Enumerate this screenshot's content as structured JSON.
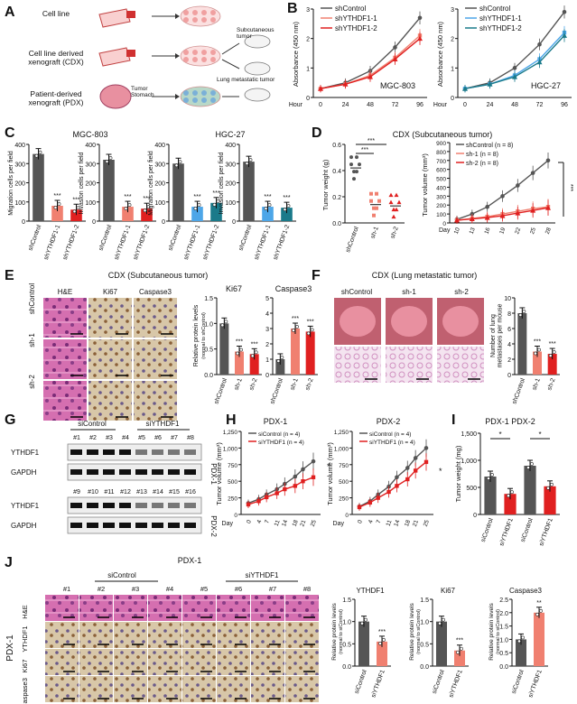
{
  "panels": {
    "A": {
      "letter": "A",
      "rows": [
        "Cell line",
        "Cell line derived\nxenograft (CDX)",
        "Patient-derived\nxenograft (PDX)"
      ],
      "tumor_stomach": "Tumor\nStomach",
      "subcutaneous": "Subcutaneous\ntumor",
      "lung_meta": "Lung metastatic tumor"
    },
    "B": {
      "letter": "B",
      "legend_left": [
        "shControl",
        "shYTHDF1-1",
        "shYTHDF1-2"
      ],
      "legend_right": [
        "shControl",
        "shYTHDF1-1",
        "shYTHDF1-2"
      ],
      "ylabel": "Absorbance (450 nm)",
      "xlabel": "Hour",
      "xticks": [
        "0",
        "24",
        "48",
        "72",
        "96"
      ],
      "yticks": [
        "0",
        "1",
        "2",
        "3"
      ],
      "cell_left": "MGC-803",
      "cell_right": "HGC-27"
    },
    "C": {
      "letter": "C",
      "title_left": "MGC-803",
      "title_right": "HGC-27",
      "ylabel_mig": "Migration cells per field",
      "ylabel_inv": "Invasion cells per field",
      "groups": [
        "shControl",
        "shYTHDF1-1",
        "shYTHDF1-2"
      ],
      "yticks": [
        "0",
        "100",
        "200",
        "300",
        "400"
      ]
    },
    "D": {
      "letter": "D",
      "title": "CDX (Subcutaneous tumor)",
      "ylabel_weight": "Tumor weight (g)",
      "groups": [
        "shControl",
        "sh-1",
        "sh-2"
      ],
      "wticks": [
        "0.0",
        "0.2",
        "0.4",
        "0.6"
      ],
      "ylabel_volume": "Tumor volume (mm³)",
      "vticks": [
        "0",
        "100",
        "200",
        "300",
        "400",
        "500",
        "600",
        "700",
        "800",
        "900"
      ],
      "days": [
        "Day",
        "10",
        "13",
        "16",
        "19",
        "22",
        "25",
        "28"
      ],
      "legend": [
        "shControl (n = 8)",
        "sh-1 (n = 8)",
        "sh-2 (n = 8)"
      ],
      "sig": [
        "***",
        "***",
        "***"
      ]
    },
    "E": {
      "letter": "E",
      "title": "CDX (Subcutaneous tumor)",
      "cols": [
        "H&E",
        "Ki67",
        "Caspase3"
      ],
      "rows": [
        "shControl",
        "sh-1",
        "sh-2"
      ],
      "chart_ki67": "Ki67",
      "chart_casp": "Caspase3",
      "ylabel": "Relative protein levels",
      "ysub": "(normal to shControl)",
      "groups": [
        "shControl",
        "sh-1",
        "sh-2"
      ]
    },
    "F": {
      "letter": "F",
      "title": "CDX (Lung metastatic tumor)",
      "cols": [
        "shControl",
        "sh-1",
        "sh-2"
      ],
      "ylabel": "Number of lung\nmetastases per mouse",
      "groups": [
        "shControl",
        "sh-1",
        "sh-2"
      ],
      "yticks": [
        "0",
        "2",
        "4",
        "6",
        "8",
        "10"
      ]
    },
    "G": {
      "letter": "G",
      "group_labels": [
        "siControl",
        "siYTHDF1"
      ],
      "lanes_top": [
        "#1",
        "#2",
        "#3",
        "#4",
        "#5",
        "#6",
        "#7",
        "#8"
      ],
      "lanes_bottom": [
        "#9",
        "#10",
        "#11",
        "#12",
        "#13",
        "#14",
        "#15",
        "#16"
      ],
      "rows": [
        "YTHDF1",
        "GAPDH",
        "YTHDF1",
        "GAPDH"
      ],
      "pdx": [
        "PDX-1",
        "PDX-2"
      ]
    },
    "H": {
      "letter": "H",
      "title_left": "PDX-1",
      "title_right": "PDX-2",
      "ylabel": "Tumor volume (mm³)",
      "yticks": [
        "0",
        "250",
        "500",
        "750",
        "1,000",
        "1,250"
      ],
      "days": [
        "Day",
        "0",
        "4",
        "7",
        "11",
        "14",
        "18",
        "21",
        "25"
      ],
      "legend": [
        "siControl (n = 4)",
        "siYTHDF1 (n = 4)"
      ]
    },
    "I": {
      "letter": "I",
      "title": "PDX-1 PDX-2",
      "ylabel": "Tumor weight (mg)",
      "yticks": [
        "0",
        "500",
        "1,000",
        "1,500"
      ],
      "groups": [
        "siControl",
        "siYTHDF1",
        "siControl",
        "siYTHDF1"
      ]
    },
    "J": {
      "letter": "J",
      "top": "PDX-1",
      "group_labels": [
        "siControl",
        "siYTHDF1"
      ],
      "lanes": [
        "#1",
        "#2",
        "#3",
        "#4",
        "#5",
        "#6",
        "#7",
        "#8"
      ],
      "rows": [
        "H&E",
        "YTHDF1",
        "Ki67",
        "Caspase3"
      ],
      "side": "PDX-1",
      "chart_titles": [
        "YTHDF1",
        "Ki67",
        "Caspase3"
      ],
      "ylabel": "Relative protein levels",
      "ysub": "(normal to siControl)",
      "groups": [
        "siControl",
        "siYTHDF1"
      ]
    }
  },
  "colors": {
    "control": "#555555",
    "kd1": "#f08070",
    "kd2": "#e02020",
    "kd_blue1": "#4da6e8",
    "kd_blue2": "#1a7a8a",
    "he": "#c04a9a",
    "ihc": "#c8b89a"
  },
  "chart_data": [
    {
      "type": "line",
      "title": "",
      "xlabel": "Hour",
      "ylabel": "Absorbance (450 nm)",
      "x": [
        0,
        24,
        48,
        72,
        96
      ],
      "ylim": [
        0,
        3
      ],
      "series": [
        {
          "name": "shControl",
          "values": [
            0.3,
            0.5,
            0.9,
            1.7,
            2.7
          ]
        },
        {
          "name": "shYTHDF1-1",
          "values": [
            0.3,
            0.45,
            0.75,
            1.35,
            2.1
          ]
        },
        {
          "name": "shYTHDF1-2",
          "values": [
            0.3,
            0.45,
            0.7,
            1.3,
            2.0
          ]
        }
      ]
    },
    {
      "type": "line",
      "title": "",
      "xlabel": "Hour",
      "ylabel": "Absorbance (450 nm)",
      "x": [
        0,
        24,
        48,
        72,
        96
      ],
      "ylim": [
        0,
        3
      ],
      "series": [
        {
          "name": "shControl",
          "values": [
            0.3,
            0.5,
            1.0,
            1.8,
            2.9
          ]
        },
        {
          "name": "shYTHDF1-1",
          "values": [
            0.3,
            0.45,
            0.75,
            1.3,
            2.2
          ]
        },
        {
          "name": "shYTHDF1-2",
          "values": [
            0.3,
            0.45,
            0.7,
            1.2,
            2.1
          ]
        }
      ]
    },
    {
      "type": "bar",
      "title": "MGC-803",
      "ylabel": "Migration cells per field",
      "categories": [
        "shControl",
        "shYTHDF1-1",
        "shYTHDF1-2"
      ],
      "values": [
        350,
        80,
        60
      ],
      "ylim": [
        0,
        400
      ]
    },
    {
      "type": "bar",
      "title": "MGC-803",
      "ylabel": "Invasion cells per field",
      "categories": [
        "shControl",
        "shYTHDF1-1",
        "shYTHDF1-2"
      ],
      "values": [
        320,
        75,
        65
      ],
      "ylim": [
        0,
        400
      ]
    },
    {
      "type": "bar",
      "title": "HGC-27",
      "ylabel": "Migration cells per field",
      "categories": [
        "shControl",
        "shYTHDF1-1",
        "shYTHDF1-2"
      ],
      "values": [
        300,
        75,
        95
      ],
      "ylim": [
        0,
        400
      ]
    },
    {
      "type": "bar",
      "title": "HGC-27",
      "ylabel": "Invasion cells per field",
      "categories": [
        "shControl",
        "shYTHDF1-1",
        "shYTHDF1-2"
      ],
      "values": [
        310,
        75,
        70
      ],
      "ylim": [
        0,
        400
      ]
    },
    {
      "type": "scatter",
      "ylabel": "Tumor weight (g)",
      "categories": [
        "shControl",
        "sh-1",
        "sh-2"
      ],
      "values": [
        0.42,
        0.14,
        0.13
      ],
      "ylim": [
        0,
        0.6
      ]
    },
    {
      "type": "line",
      "title": "",
      "xlabel": "Day",
      "ylabel": "Tumor volume (mm³)",
      "x": [
        10,
        13,
        16,
        19,
        22,
        25,
        28
      ],
      "ylim": [
        0,
        900
      ],
      "series": [
        {
          "name": "shControl (n = 8)",
          "values": [
            40,
            100,
            180,
            300,
            420,
            560,
            700
          ]
        },
        {
          "name": "sh-1 (n = 8)",
          "values": [
            30,
            50,
            70,
            100,
            130,
            160,
            180
          ]
        },
        {
          "name": "sh-2 (n = 8)",
          "values": [
            30,
            45,
            60,
            80,
            110,
            140,
            170
          ]
        }
      ]
    },
    {
      "type": "bar",
      "title": "Ki67",
      "ylabel": "Relative protein levels",
      "categories": [
        "shControl",
        "sh-1",
        "sh-2"
      ],
      "values": [
        1.0,
        0.45,
        0.4
      ],
      "ylim": [
        0,
        1.5
      ]
    },
    {
      "type": "bar",
      "title": "Caspase3",
      "ylabel": "Relative protein levels",
      "categories": [
        "shControl",
        "sh-1",
        "sh-2"
      ],
      "values": [
        1.0,
        3.0,
        2.8
      ],
      "ylim": [
        0,
        5
      ]
    },
    {
      "type": "bar",
      "ylabel": "Number of lung metastases per mouse",
      "categories": [
        "shControl",
        "sh-1",
        "sh-2"
      ],
      "values": [
        8,
        3,
        2.7
      ],
      "ylim": [
        0,
        10
      ]
    },
    {
      "type": "line",
      "title": "PDX-1",
      "xlabel": "Day",
      "ylabel": "Tumor volume (mm³)",
      "x": [
        0,
        4,
        7,
        11,
        14,
        18,
        21,
        25
      ],
      "ylim": [
        0,
        1250
      ],
      "series": [
        {
          "name": "siControl (n = 4)",
          "values": [
            170,
            230,
            300,
            380,
            460,
            570,
            680,
            800
          ]
        },
        {
          "name": "siYTHDF1 (n = 4)",
          "values": [
            150,
            200,
            260,
            320,
            380,
            430,
            500,
            560
          ]
        }
      ]
    },
    {
      "type": "line",
      "title": "PDX-2",
      "xlabel": "Day",
      "ylabel": "Tumor volume (mm³)",
      "x": [
        0,
        4,
        7,
        11,
        14,
        18,
        21,
        25
      ],
      "ylim": [
        0,
        1250
      ],
      "series": [
        {
          "name": "siControl (n = 4)",
          "values": [
            120,
            200,
            300,
            420,
            560,
            700,
            850,
            1000
          ]
        },
        {
          "name": "siYTHDF1 (n = 4)",
          "values": [
            110,
            180,
            250,
            340,
            430,
            530,
            660,
            790
          ]
        }
      ]
    },
    {
      "type": "bar",
      "ylabel": "Tumor weight (mg)",
      "categories": [
        "siControl",
        "siYTHDF1",
        "siControl",
        "siYTHDF1"
      ],
      "values": [
        700,
        380,
        900,
        520
      ],
      "ylim": [
        0,
        1500
      ]
    },
    {
      "type": "bar",
      "title": "YTHDF1",
      "ylabel": "Relative protein levels",
      "categories": [
        "siControl",
        "siYTHDF1"
      ],
      "values": [
        1.0,
        0.55
      ],
      "ylim": [
        0,
        1.5
      ]
    },
    {
      "type": "bar",
      "title": "Ki67",
      "ylabel": "Relative protein levels",
      "categories": [
        "siControl",
        "siYTHDF1"
      ],
      "values": [
        1.0,
        0.35
      ],
      "ylim": [
        0,
        1.5
      ]
    },
    {
      "type": "bar",
      "title": "Caspase3",
      "ylabel": "Relative protein levels",
      "categories": [
        "siControl",
        "siYTHDF1"
      ],
      "values": [
        1.0,
        2.0
      ],
      "ylim": [
        0,
        2.5
      ]
    }
  ]
}
